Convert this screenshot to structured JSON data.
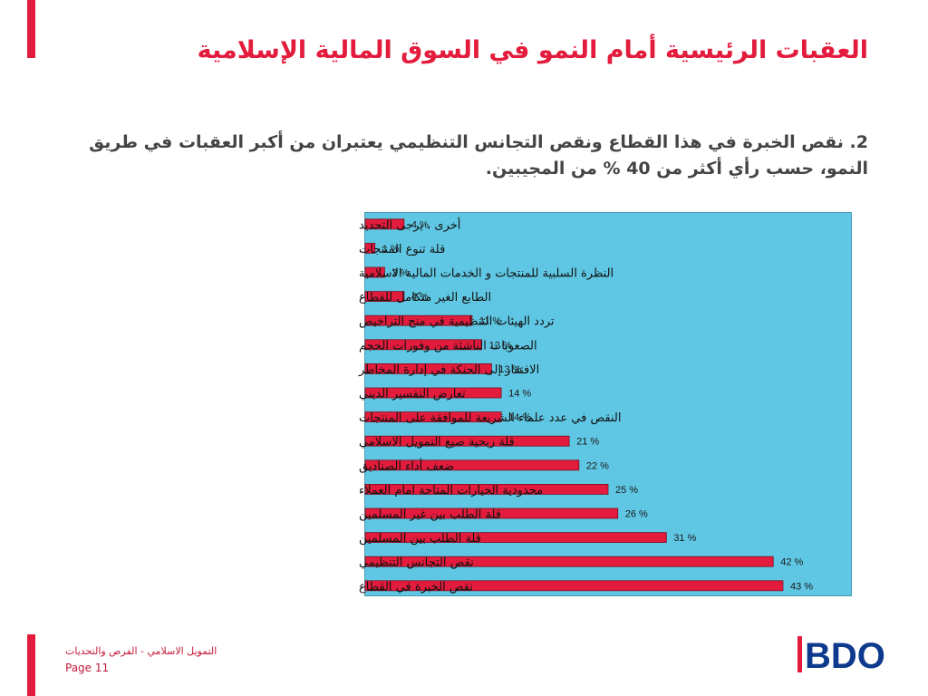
{
  "header": {
    "title": "العقبات الرئيسية أمام النمو في السوق المالية الإسلامية",
    "subtitle": "2. نقص الخبرة في هذا القطاع ونقص التجانس التنظيمي يعتبران من أكبر العقبات في طريق النمو، حسب رأي أكثر من 40 % من المجيبين."
  },
  "chart_data": {
    "type": "bar",
    "orientation": "horizontal",
    "categories": [
      "أخرى ، يرجى التحديد",
      "قلة تنوع المنتجات",
      "النظرة السلبية للمنتجات و الخدمات المالية الاسلامية",
      "الطابع الغير متكامل للقطاع",
      "تردد الهيئات التنظيمية في منح التراخيص",
      "الصعوبات الناشئة من وفورات الحجم",
      "الافتقار إلى الحنكة في إدارة المخاطر",
      "تعارض التفسير الديني",
      "النقص في عدد علماء الشريعة للموافقة على المنتجات",
      "قلة ربحية صيغ التمويل الاسلامي",
      "ضعف أداء الصناديق",
      "محدودية الخيارات المتاحة امام العملاء",
      "قلة الطلب بين غير المسلمين",
      "قلة الطلب بين المسلمين",
      "نقص التجانس التنظيمي",
      "نقص الخبرة في القطاع"
    ],
    "values": [
      4,
      1,
      2,
      4,
      11,
      12,
      13,
      14,
      14,
      21,
      22,
      25,
      26,
      31,
      42,
      43
    ],
    "value_labels": [
      "4 %",
      "1 %",
      "2 %",
      "4 %",
      "11 %",
      "12 %",
      "13 %",
      "14 %",
      "14 %",
      "21 %",
      "22 %",
      "25 %",
      "26 %",
      "31 %",
      "42 %",
      "43 %"
    ],
    "xlim": [
      0,
      50
    ],
    "grid": false,
    "legend": "none",
    "colors": {
      "bar": "#e31b3c",
      "bar_border": "#7a0f20",
      "plot_bg": "#5fc7e3"
    }
  },
  "footer": {
    "text": "التمويل الاسلامي - الفرص والتحديات",
    "page": "Page 11"
  },
  "logo": {
    "text": "BDO",
    "color": "#0d3a8c",
    "accent": "#e31b3c"
  }
}
